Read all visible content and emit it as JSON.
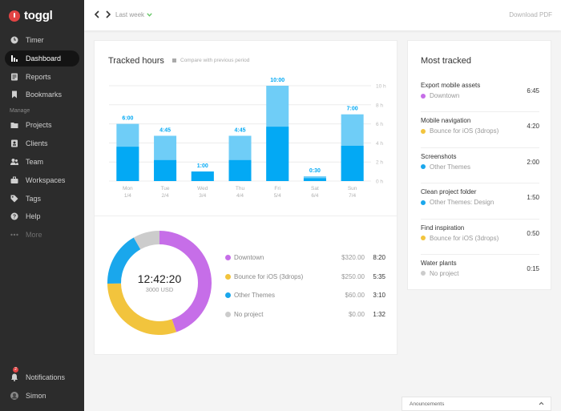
{
  "app": {
    "name": "toggl"
  },
  "nav": {
    "items": [
      {
        "label": "Timer",
        "icon": "clock-icon"
      },
      {
        "label": "Dashboard",
        "icon": "bar-chart-icon"
      },
      {
        "label": "Reports",
        "icon": "report-icon"
      },
      {
        "label": "Bookmarks",
        "icon": "bookmark-icon"
      }
    ],
    "manage_label": "Manage",
    "manage_items": [
      {
        "label": "Projects",
        "icon": "folder-icon"
      },
      {
        "label": "Clients",
        "icon": "client-icon"
      },
      {
        "label": "Team",
        "icon": "team-icon"
      },
      {
        "label": "Workspaces",
        "icon": "briefcase-icon"
      },
      {
        "label": "Tags",
        "icon": "tag-icon"
      },
      {
        "label": "Help",
        "icon": "help-icon"
      },
      {
        "label": "More",
        "icon": "more-dots-icon"
      }
    ],
    "notifications_label": "Notifications",
    "notifications_count": "2",
    "user_label": "Simon"
  },
  "topbar": {
    "period_label": "Last week",
    "download_label": "Download PDF"
  },
  "tracked_hours": {
    "title": "Tracked hours",
    "compare_label": "Compare with previous period"
  },
  "chart_data": {
    "type": "bar",
    "categories": [
      "Mon",
      "Tue",
      "Wed",
      "Thu",
      "Fri",
      "Sat",
      "Sun"
    ],
    "dates": [
      "1/4",
      "2/4",
      "3/4",
      "4/4",
      "5/4",
      "6/4",
      "7/4"
    ],
    "totals_label": [
      "6:00",
      "4:45",
      "1:00",
      "4:45",
      "10:00",
      "0:30",
      "7:00"
    ],
    "series": [
      {
        "values": [
          6.0,
          4.75,
          1.0,
          4.75,
          10.0,
          0.5,
          7.0
        ]
      },
      {
        "values": [
          3.6,
          2.2,
          1.0,
          2.2,
          5.7,
          0.3,
          3.7
        ]
      }
    ],
    "ylim": [
      0,
      10
    ],
    "y_ticks": [
      "0 h",
      "2 h",
      "4 h",
      "6 h",
      "8 h",
      "10 h"
    ],
    "grid": true,
    "colors": {
      "total": "#6fcdf7",
      "billable": "#03a9f4"
    }
  },
  "donut": {
    "total_time": "12:42:20",
    "total_amount": "3000 USD",
    "segments": [
      {
        "name": "Downtown",
        "amount": "$320.00",
        "hours": "8:20",
        "value": 500,
        "color": "#c66ee8"
      },
      {
        "name": "Bounce for iOS (3drops)",
        "amount": "$250.00",
        "hours": "5:35",
        "value": 335,
        "color": "#f2c43d"
      },
      {
        "name": "Other Themes",
        "amount": "$60.00",
        "hours": "3:10",
        "value": 190,
        "color": "#1aa7ec"
      },
      {
        "name": "No project",
        "amount": "$0.00",
        "hours": "1:32",
        "value": 92,
        "color": "#cccccc"
      }
    ]
  },
  "most_tracked": {
    "title": "Most tracked",
    "items": [
      {
        "name": "Export mobile assets",
        "project": "Downtown",
        "color": "#c66ee8",
        "duration": "6:45"
      },
      {
        "name": "Mobile navigation",
        "project": "Bounce for iOS (3drops)",
        "color": "#f2c43d",
        "duration": "4:20"
      },
      {
        "name": "Screenshots",
        "project": "Other Themes",
        "color": "#1aa7ec",
        "duration": "2:00"
      },
      {
        "name": "Clean project folder",
        "project": "Other Themes: Design",
        "color": "#1aa7ec",
        "duration": "1:50"
      },
      {
        "name": "Find inspiration",
        "project": "Bounce for iOS (3drops)",
        "color": "#f2c43d",
        "duration": "0:50"
      },
      {
        "name": "Water plants",
        "project": "No project",
        "color": "#cccccc",
        "duration": "0:15"
      }
    ]
  },
  "announcements": {
    "label": "Anouncements"
  }
}
